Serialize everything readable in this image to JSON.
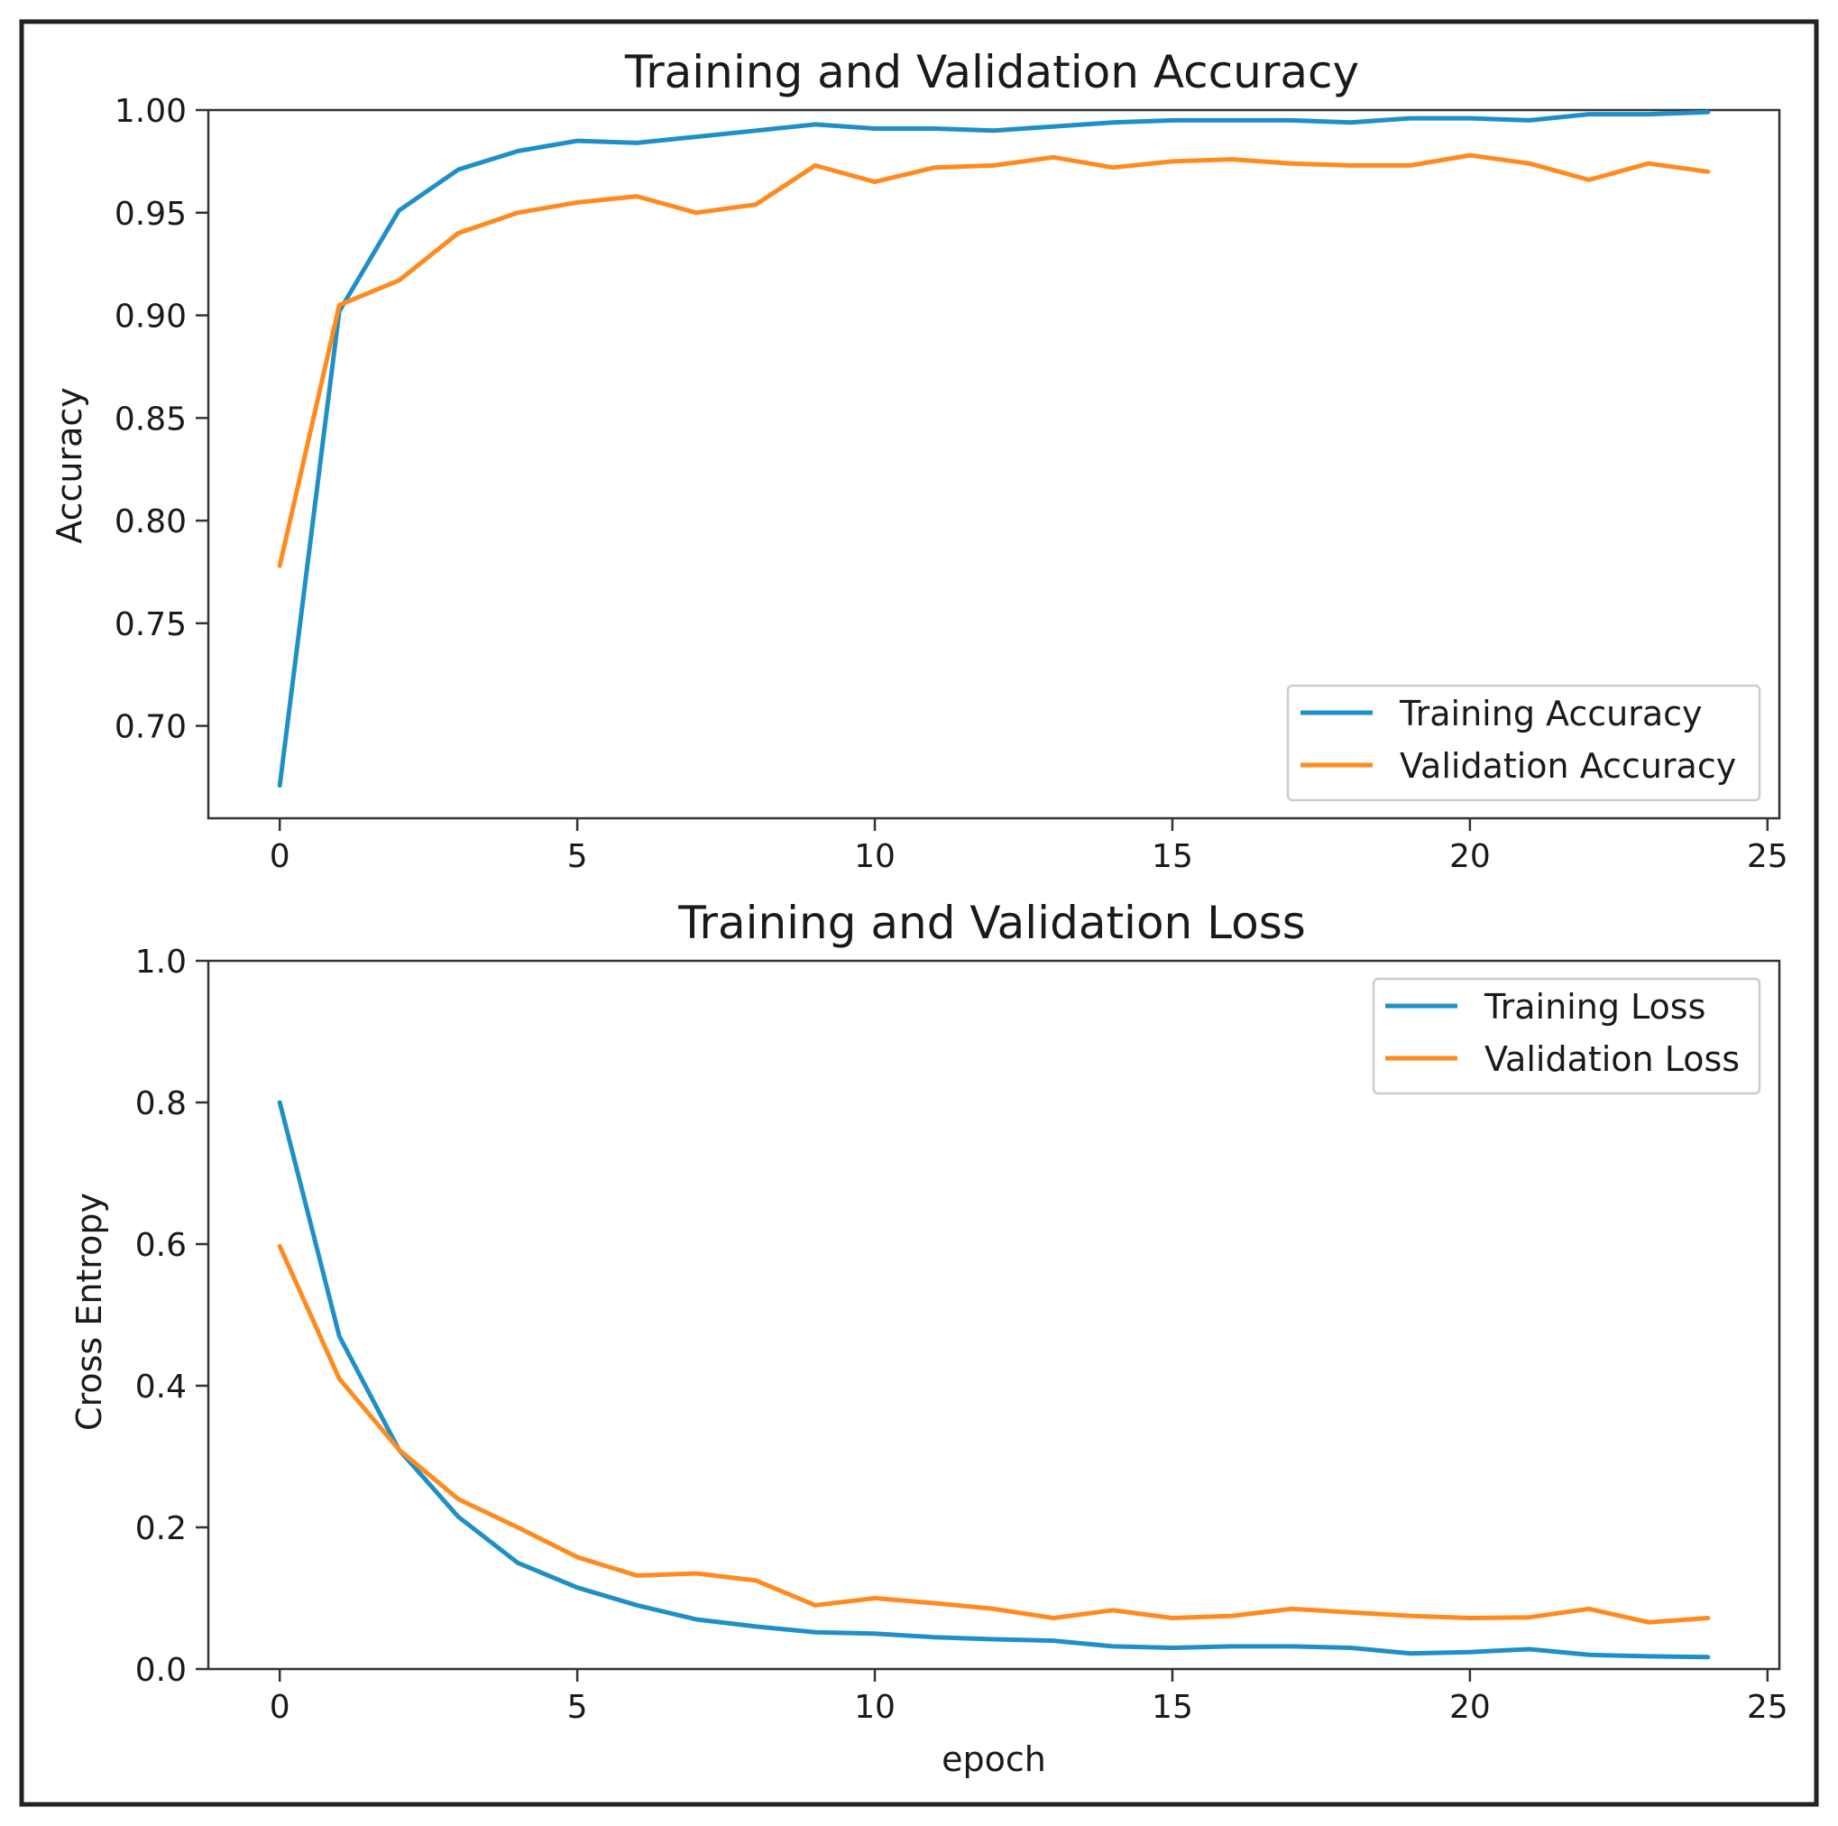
{
  "chart_data": [
    {
      "type": "line",
      "title": "Training and Validation Accuracy",
      "xlabel": "",
      "ylabel": "Accuracy",
      "xlim": [
        -1.2,
        25.2
      ],
      "ylim": [
        0.655,
        1.0
      ],
      "xticks": [
        0,
        5,
        10,
        15,
        20,
        25
      ],
      "yticks": [
        0.7,
        0.75,
        0.8,
        0.85,
        0.9,
        0.95,
        1.0
      ],
      "ytick_decimals": 2,
      "legend_position": "lower-right",
      "x": [
        0,
        1,
        2,
        3,
        4,
        5,
        6,
        7,
        8,
        9,
        10,
        11,
        12,
        13,
        14,
        15,
        16,
        17,
        18,
        19,
        20,
        21,
        22,
        23,
        24
      ],
      "series": [
        {
          "name": "Training Accuracy",
          "color": "#1f8fc6",
          "values": [
            0.671,
            0.902,
            0.951,
            0.971,
            0.98,
            0.985,
            0.984,
            0.987,
            0.99,
            0.993,
            0.991,
            0.991,
            0.99,
            0.992,
            0.994,
            0.995,
            0.995,
            0.995,
            0.994,
            0.996,
            0.996,
            0.995,
            0.998,
            0.998,
            0.999
          ]
        },
        {
          "name": "Validation Accuracy",
          "color": "#ff8a1e",
          "values": [
            0.778,
            0.905,
            0.917,
            0.94,
            0.95,
            0.955,
            0.958,
            0.95,
            0.954,
            0.973,
            0.965,
            0.972,
            0.973,
            0.977,
            0.972,
            0.975,
            0.976,
            0.974,
            0.973,
            0.973,
            0.978,
            0.974,
            0.966,
            0.974,
            0.97
          ]
        }
      ]
    },
    {
      "type": "line",
      "title": "Training and Validation Loss",
      "xlabel": "epoch",
      "ylabel": "Cross Entropy",
      "xlim": [
        -1.2,
        25.2
      ],
      "ylim": [
        0.0,
        1.0
      ],
      "xticks": [
        0,
        5,
        10,
        15,
        20,
        25
      ],
      "yticks": [
        0.0,
        0.2,
        0.4,
        0.6,
        0.8,
        1.0
      ],
      "ytick_decimals": 1,
      "legend_position": "upper-right",
      "x": [
        0,
        1,
        2,
        3,
        4,
        5,
        6,
        7,
        8,
        9,
        10,
        11,
        12,
        13,
        14,
        15,
        16,
        17,
        18,
        19,
        20,
        21,
        22,
        23,
        24
      ],
      "series": [
        {
          "name": "Training Loss",
          "color": "#1f8fc6",
          "values": [
            0.8,
            0.47,
            0.31,
            0.215,
            0.15,
            0.115,
            0.09,
            0.07,
            0.06,
            0.052,
            0.05,
            0.045,
            0.042,
            0.04,
            0.032,
            0.03,
            0.032,
            0.032,
            0.03,
            0.022,
            0.024,
            0.028,
            0.02,
            0.018,
            0.017
          ]
        },
        {
          "name": "Validation Loss",
          "color": "#ff8a1e",
          "values": [
            0.597,
            0.41,
            0.31,
            0.24,
            0.2,
            0.158,
            0.132,
            0.135,
            0.125,
            0.09,
            0.1,
            0.093,
            0.085,
            0.072,
            0.083,
            0.072,
            0.075,
            0.085,
            0.08,
            0.075,
            0.072,
            0.073,
            0.085,
            0.066,
            0.072
          ]
        }
      ]
    }
  ]
}
